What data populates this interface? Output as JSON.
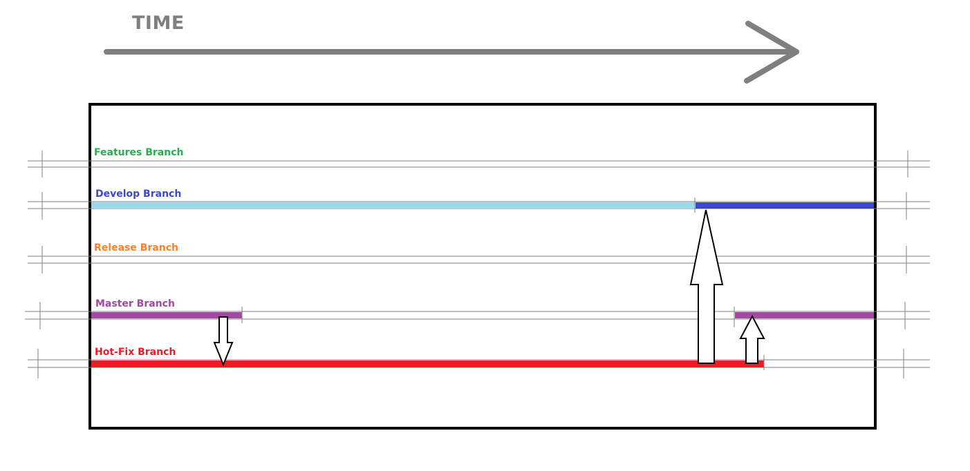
{
  "time_label": "TIME",
  "branches": {
    "features": {
      "label": "Features Branch",
      "color": "#22b14c"
    },
    "develop": {
      "label": "Develop Branch",
      "color": "#3f48cc",
      "before_color": "#99d9ea"
    },
    "release": {
      "label": "Release Branch",
      "color": "#ff7f27"
    },
    "master": {
      "label": "Master Branch",
      "color": "#a349a4"
    },
    "hotfix": {
      "label": "Hot-Fix Branch",
      "color": "#ed1c24"
    }
  },
  "colors": {
    "time_arrow": "#7f7f7f",
    "frame": "#000000",
    "track_lines": "#7f7f7f"
  }
}
